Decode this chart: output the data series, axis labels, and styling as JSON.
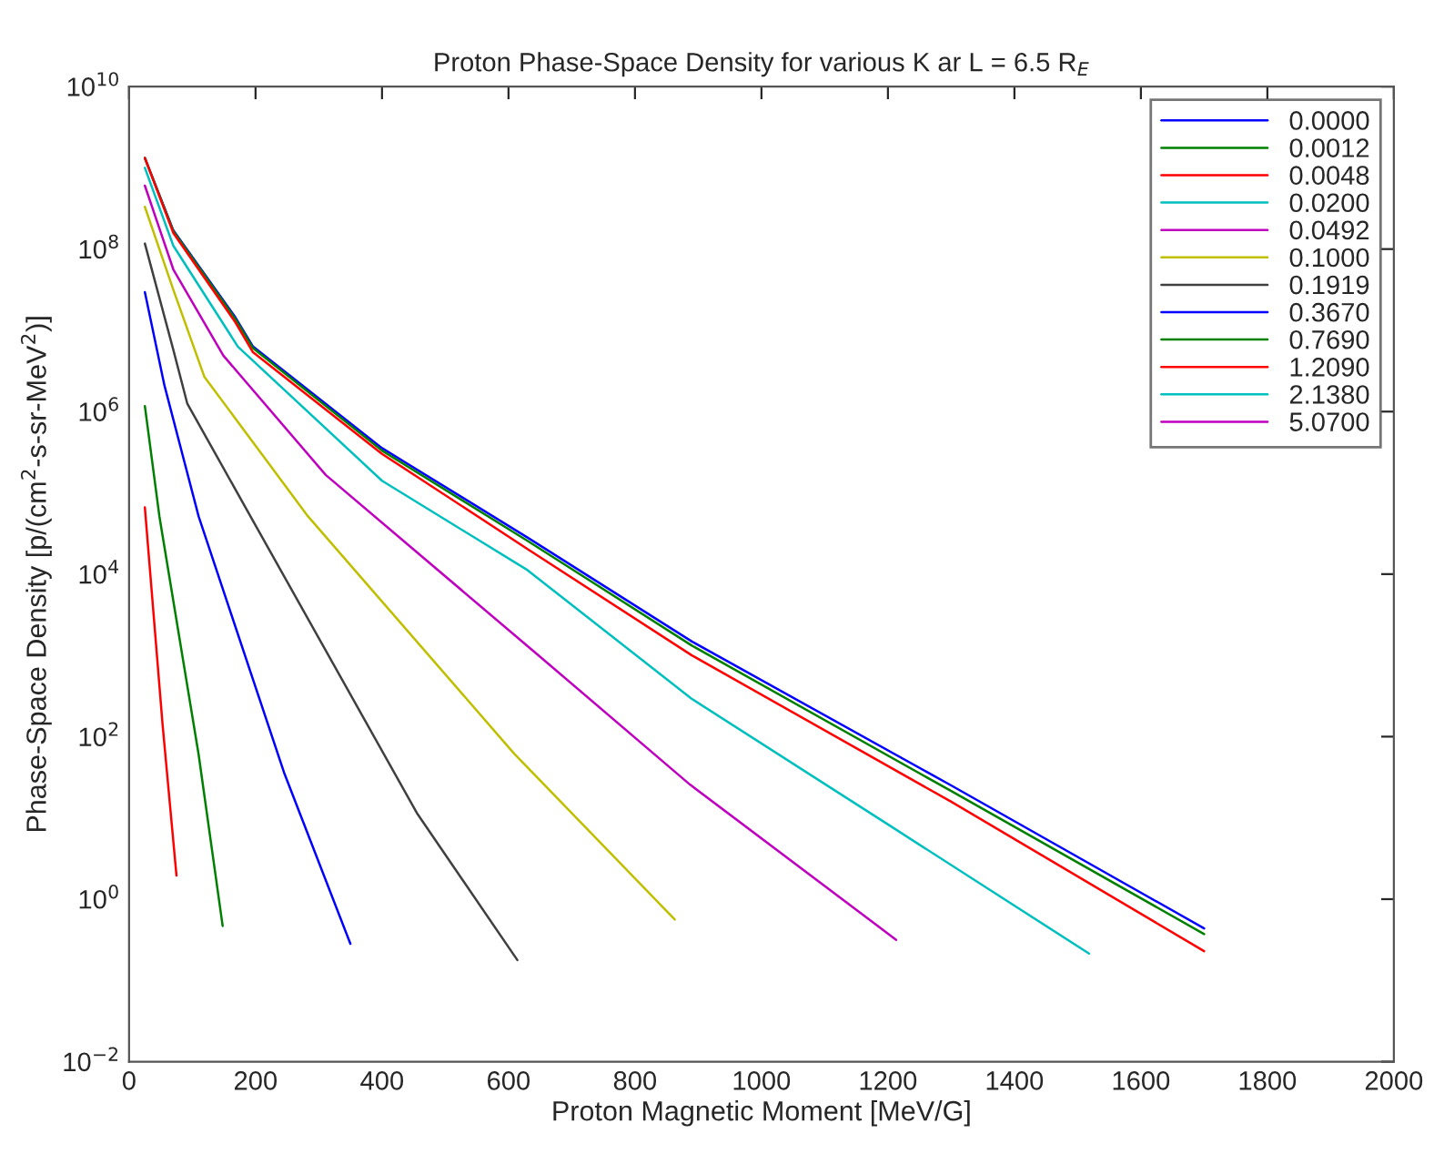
{
  "chart_data": {
    "type": "line",
    "title": "Proton Phase-Space Density for various K ar L = 6.5 R$_{E}$",
    "xlabel": "Proton Magnetic Moment [MeV/G]",
    "ylabel": "Phase-Space Density [p/(cm$^{2}$-s-sr-MeV$^{2}$)]",
    "log": "y",
    "xlim": [
      0,
      2000
    ],
    "xticks": [
      0,
      200,
      400,
      600,
      800,
      1000,
      1200,
      1400,
      1600,
      1800,
      2000
    ],
    "ylim": [
      0.01,
      10000000000
    ],
    "yticks": [
      {
        "value": 0.01,
        "label": "10$^{−2}$"
      },
      {
        "value": 1,
        "label": "10$^{0}$"
      },
      {
        "value": 100,
        "label": "10$^{2}$"
      },
      {
        "value": 10000,
        "label": "10$^{4}$"
      },
      {
        "value": 1000000,
        "label": "10$^{6}$"
      },
      {
        "value": 100000000,
        "label": "10$^{8}$"
      },
      {
        "value": 10000000000,
        "label": "10$^{10}$"
      }
    ],
    "grid": false,
    "legend": "top right",
    "line_style": "solid",
    "series": [
      {
        "name": "0.0000",
        "color": "#0000ff",
        "x": [
          25,
          70,
          168,
          196,
          400,
          630,
          890,
          1300,
          1700
        ],
        "values": [
          1320000000.0,
          170000000.0,
          14500000.0,
          6310000.0,
          355000.0,
          28200.0,
          1480.0,
          25.1,
          0.437
        ]
      },
      {
        "name": "0.0012",
        "color": "#008000",
        "x": [
          25,
          70,
          168,
          196,
          400,
          630,
          890,
          1300,
          1700
        ],
        "values": [
          1320000000.0,
          166000000.0,
          13800000.0,
          6030000.0,
          331000.0,
          25700.0,
          1320.0,
          21.4,
          0.372
        ]
      },
      {
        "name": "0.0048",
        "color": "#ff0000",
        "x": [
          25,
          70,
          168,
          196,
          400,
          630,
          890,
          1300,
          1700
        ],
        "values": [
          1320000000.0,
          158000000.0,
          12600000.0,
          5370000.0,
          302000.0,
          20400.0,
          1000.0,
          15.8,
          0.229
        ]
      },
      {
        "name": "0.0200",
        "color": "#00bfbf",
        "x": [
          25,
          70,
          172,
          400,
          630,
          889,
          1204,
          1518
        ],
        "values": [
          1000000000.0,
          110000000.0,
          6310000.0,
          141000.0,
          11200.0,
          295,
          7.94,
          0.214
        ]
      },
      {
        "name": "0.0492",
        "color": "#bf00bf",
        "x": [
          25,
          70,
          149,
          311,
          640,
          887,
          1213
        ],
        "values": [
          603000000.0,
          56200000.0,
          4900000.0,
          166000.0,
          1120.0,
          25.7,
          0.316
        ]
      },
      {
        "name": "0.1000",
        "color": "#bfbf00",
        "x": [
          25,
          70,
          119,
          283,
          609,
          863
        ],
        "values": [
          331000000.0,
          31600000.0,
          2690000.0,
          51300.0,
          61.7,
          0.562
        ]
      },
      {
        "name": "0.1919",
        "color": "#404040",
        "x": [
          25,
          70,
          92,
          192,
          456,
          614
        ],
        "values": [
          117000000.0,
          5750000.0,
          1260000.0,
          51300.0,
          11.2,
          0.178
        ]
      },
      {
        "name": "0.3670",
        "color": "#0000ff",
        "x": [
          25,
          56,
          110,
          245,
          350
        ],
        "values": [
          29500000.0,
          2090000.0,
          51300.0,
          36.3,
          0.282
        ]
      },
      {
        "name": "0.7690",
        "color": "#008000",
        "x": [
          25,
          48,
          110,
          148
        ],
        "values": [
          1170000.0,
          51300.0,
          60.3,
          0.468
        ]
      },
      {
        "name": "1.2090",
        "color": "#ff0000",
        "x": [
          25,
          53,
          75
        ],
        "values": [
          66100.0,
          141,
          1.95
        ]
      },
      {
        "name": "2.1380",
        "color": "#00bfbf"
      },
      {
        "name": "5.0700",
        "color": "#bf00bf"
      }
    ]
  }
}
